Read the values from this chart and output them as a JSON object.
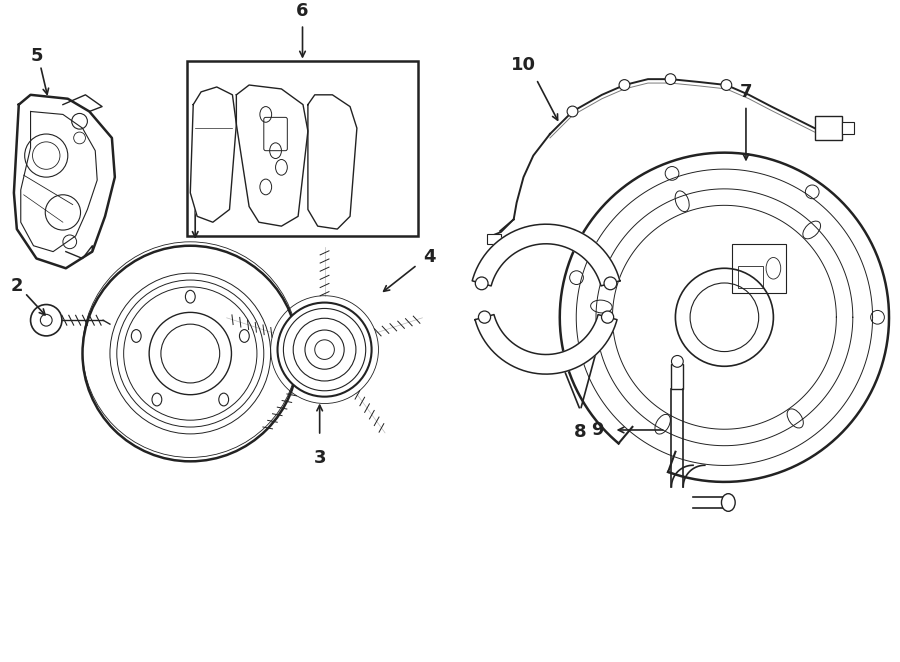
{
  "background_color": "#ffffff",
  "line_color": "#222222",
  "figsize": [
    9.0,
    6.62
  ],
  "dpi": 100,
  "xlim": [
    0,
    9
  ],
  "ylim": [
    0,
    6.62
  ]
}
